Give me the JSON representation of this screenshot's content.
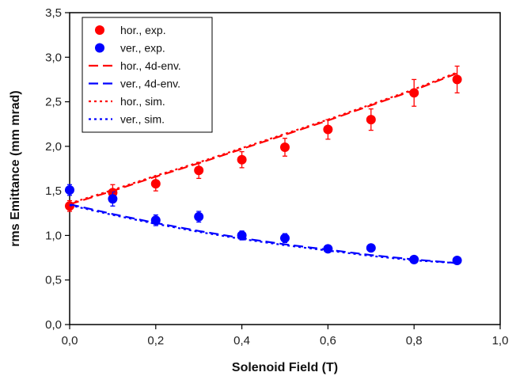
{
  "chart_data": {
    "type": "scatter",
    "title": "",
    "xlabel": "Solenoid Field (T)",
    "ylabel": "rms Emittance (mm mrad)",
    "xlim": [
      0.0,
      1.0
    ],
    "ylim": [
      0.0,
      3.5
    ],
    "x_ticks": [
      "0,0",
      "0,2",
      "0,4",
      "0,6",
      "0,8",
      "1,0"
    ],
    "y_ticks": [
      "0,0",
      "0,5",
      "1,0",
      "1,5",
      "2,0",
      "2,5",
      "3,0",
      "3,5"
    ],
    "x_tick_values": [
      0.0,
      0.2,
      0.4,
      0.6,
      0.8,
      1.0
    ],
    "y_tick_values": [
      0.0,
      0.5,
      1.0,
      1.5,
      2.0,
      2.5,
      3.0,
      3.5
    ],
    "grid": false,
    "legend_position": "top-left",
    "series": [
      {
        "name": "hor., exp.",
        "style": "markers",
        "color": "#ff0000",
        "x": [
          0.0,
          0.1,
          0.2,
          0.3,
          0.4,
          0.5,
          0.6,
          0.7,
          0.8,
          0.9
        ],
        "y": [
          1.33,
          1.48,
          1.58,
          1.73,
          1.85,
          1.99,
          2.19,
          2.3,
          2.6,
          2.75
        ],
        "err": [
          0.06,
          0.09,
          0.08,
          0.09,
          0.09,
          0.1,
          0.11,
          0.12,
          0.15,
          0.15
        ]
      },
      {
        "name": "ver., exp.",
        "style": "markers",
        "color": "#0000ff",
        "x": [
          0.0,
          0.1,
          0.2,
          0.3,
          0.4,
          0.5,
          0.6,
          0.7,
          0.8,
          0.9
        ],
        "y": [
          1.51,
          1.41,
          1.17,
          1.21,
          1.0,
          0.97,
          0.85,
          0.86,
          0.73,
          0.72
        ],
        "err": [
          0.06,
          0.08,
          0.06,
          0.06,
          0.05,
          0.05,
          0.04,
          0.04,
          0.03,
          0.03
        ]
      },
      {
        "name": "hor., 4d-env.",
        "style": "dashed",
        "color": "#ff0000",
        "x": [
          0.0,
          0.1,
          0.2,
          0.3,
          0.4,
          0.5,
          0.6,
          0.7,
          0.8,
          0.9
        ],
        "y": [
          1.35,
          1.5,
          1.66,
          1.81,
          1.97,
          2.13,
          2.29,
          2.46,
          2.63,
          2.82
        ]
      },
      {
        "name": "ver., 4d-env.",
        "style": "dashed",
        "color": "#0000ff",
        "x": [
          0.0,
          0.1,
          0.2,
          0.3,
          0.4,
          0.5,
          0.6,
          0.7,
          0.8,
          0.9
        ],
        "y": [
          1.35,
          1.24,
          1.14,
          1.05,
          0.97,
          0.9,
          0.84,
          0.78,
          0.73,
          0.69
        ]
      },
      {
        "name": "hor., sim.",
        "style": "dotted",
        "color": "#ff0000",
        "x": [
          0.0,
          0.1,
          0.2,
          0.3,
          0.4,
          0.5,
          0.6,
          0.7,
          0.8,
          0.9
        ],
        "y": [
          1.36,
          1.51,
          1.67,
          1.82,
          1.98,
          2.14,
          2.3,
          2.47,
          2.64,
          2.83
        ]
      },
      {
        "name": "ver., sim.",
        "style": "dotted",
        "color": "#0000ff",
        "x": [
          0.0,
          0.1,
          0.2,
          0.3,
          0.4,
          0.5,
          0.6,
          0.7,
          0.8,
          0.9
        ],
        "y": [
          1.34,
          1.23,
          1.13,
          1.04,
          0.96,
          0.89,
          0.83,
          0.77,
          0.72,
          0.69
        ]
      }
    ]
  }
}
